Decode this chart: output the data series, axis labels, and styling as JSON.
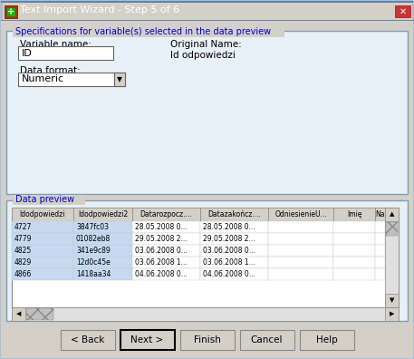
{
  "title": "Text Import Wizard - Step 5 of 6",
  "bg_color": "#d4d0c8",
  "title_bar_top_color": "#accbf5",
  "title_bar_bottom_color": "#6699cc",
  "section1_title": "Specifications for variable(s) selected in the data preview",
  "section2_title": "Data preview",
  "var_name_label": "Variable name:",
  "var_name_value": "ID",
  "original_name_label": "Original Name:",
  "original_name_value": "Id odpowiedzi",
  "data_format_label": "Data format:",
  "data_format_value": "Numeric",
  "table_headers": [
    "Idodpowiedzi",
    "Idodpowiedzi2",
    "Datarozpocz....",
    "Datazakończ....",
    "OdniesienieU...",
    "Imię",
    "Na"
  ],
  "table_rows": [
    [
      "4727",
      "3847fc03",
      "28.05.2008 0...",
      "28.05.2008 0...",
      "",
      "",
      ""
    ],
    [
      "4779",
      "01082eb8",
      "29.05.2008 2...",
      "29.05.2008 2...",
      "",
      "",
      ""
    ],
    [
      "4825",
      "341e9c89",
      "03.06.2008 0...",
      "03.06.2008 0...",
      "",
      "",
      ""
    ],
    [
      "4829",
      "12d0c45e",
      "03.06.2008 1...",
      "03.06.2008 1...",
      "",
      "",
      ""
    ],
    [
      "4866",
      "1418aa34",
      "04.06.2008 0...",
      "04.06.2008 0...",
      "",
      "",
      ""
    ]
  ],
  "buttons": [
    "< Back",
    "Next >",
    "Finish",
    "Cancel",
    "Help"
  ],
  "col1_highlight_color": "#c5d9f1",
  "section_border_color": "#7f9db9",
  "section_fill_color": "#e8f0f8",
  "outer_border_color": "#7f9db9"
}
